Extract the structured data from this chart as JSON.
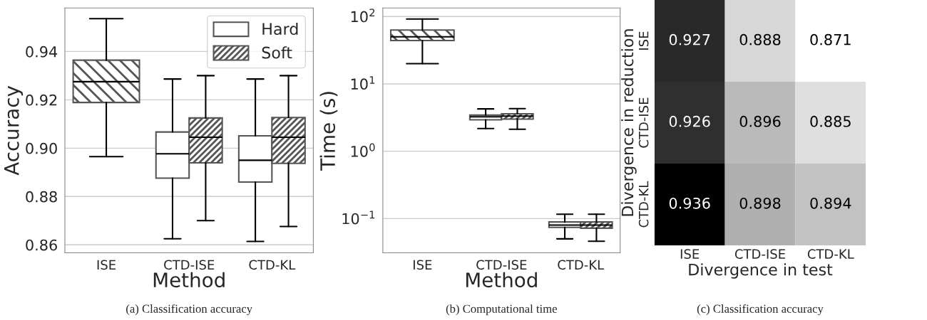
{
  "chart_data": [
    {
      "type": "box",
      "categories": [
        "ISE",
        "CTD-ISE",
        "CTD-KL"
      ],
      "xlabel": "Method",
      "ylabel": "Accuracy",
      "ylim": [
        0.8567,
        0.958
      ],
      "yticks": [
        0.86,
        0.88,
        {
          "value": 0.9,
          "label": "0.90"
        },
        0.92,
        0.94
      ],
      "grid": "y",
      "legend": "top right",
      "annotations": [
        "(a) Classification accuracy"
      ],
      "series": [
        {
          "name": "Hard",
          "color": "#ffffff",
          "boxes": [
            null,
            {
              "low": 0.8625,
              "q1": 0.8876,
              "median": 0.8977,
              "q3": 0.9067,
              "high": 0.9286
            },
            {
              "low": 0.8614,
              "q1": 0.886,
              "median": 0.895,
              "q3": 0.9051,
              "high": 0.9286
            }
          ]
        },
        {
          "name": "Soft",
          "color": "#555555",
          "boxes": [
            null,
            {
              "low": 0.87,
              "q1": 0.8939,
              "median": 0.9045,
              "q3": 0.9125,
              "high": 0.93
            },
            {
              "low": 0.8676,
              "q1": 0.8937,
              "median": 0.9045,
              "q3": 0.9127,
              "high": 0.93
            }
          ]
        },
        {
          "color": "#555555",
          "boxes": [
            {
              "low": 0.8965,
              "q1": 0.9189,
              "median": 0.9275,
              "q3": 0.9364,
              "high": 0.9536
            },
            null,
            null
          ]
        }
      ]
    },
    {
      "type": "box",
      "categories": [
        "ISE",
        "CTD-ISE",
        "CTD-KL"
      ],
      "xlabel": "Method",
      "ylabel": "Time (s)",
      "log": true,
      "ylim": [
        0.031,
        134
      ],
      "yticks": [
        {
          "value": 0.1,
          "label": "10$^{−1}$"
        },
        {
          "value": 1,
          "label": "10$^{0}$"
        },
        {
          "value": 10,
          "label": "10$^{1}$"
        },
        {
          "value": 100,
          "label": "10$^{2}$"
        }
      ],
      "grid": "y",
      "annotations": [
        "(b) Computational time"
      ],
      "series": [
        {
          "color": "#ffffff",
          "boxes": [
            null,
            {
              "low": 2.17,
              "q1": 2.93,
              "median": 3.25,
              "q3": 3.44,
              "high": 4.25
            },
            {
              "low": 0.05,
              "q1": 0.074,
              "median": 0.08,
              "q3": 0.089,
              "high": 0.116
            }
          ]
        },
        {
          "color": "#555555",
          "boxes": [
            null,
            {
              "low": 2.12,
              "q1": 3.0,
              "median": 3.33,
              "q3": 3.6,
              "high": 4.3
            },
            {
              "low": 0.046,
              "q1": 0.072,
              "median": 0.08,
              "q3": 0.089,
              "high": 0.116
            }
          ]
        },
        {
          "color": "#555555",
          "boxes": [
            {
              "low": 20,
              "q1": 44,
              "median": 50,
              "q3": 63,
              "high": 92
            },
            null,
            null
          ]
        }
      ]
    },
    {
      "type": "heatmap",
      "categories": [
        "ISE",
        "CTD-ISE",
        "CTD-KL"
      ],
      "y_categories": [
        "ISE",
        "CTD-ISE",
        "CTD-KL"
      ],
      "xlabel": "Divergence in test",
      "ylabel": "Divergence in reduction",
      "data_labels": true,
      "annotations": [
        "(c) Classification accuracy"
      ],
      "cells": [
        [
          0.927,
          0.888,
          0.871
        ],
        [
          0.926,
          0.896,
          0.885
        ],
        [
          0.936,
          0.898,
          0.894
        ]
      ]
    }
  ]
}
